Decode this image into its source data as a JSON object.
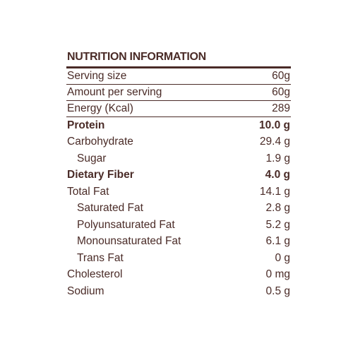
{
  "title": "NUTRITION INFORMATION",
  "table": {
    "rows": [
      [
        "Serving size",
        "60g"
      ],
      [
        "Amount per serving",
        "60g"
      ],
      [
        "Energy (Kcal)",
        "289"
      ],
      [
        "Protein",
        "10.0 g"
      ],
      [
        "Carbohydrate",
        "29.4 g"
      ],
      [
        "Sugar",
        "1.9 g"
      ],
      [
        "Dietary Fiber",
        "4.0 g"
      ],
      [
        "Total Fat",
        "14.1 g"
      ],
      [
        "Saturated Fat",
        "2.8 g"
      ],
      [
        "Polyunsaturated Fat",
        "5.2 g"
      ],
      [
        "Monounsaturated Fat",
        "6.1 g"
      ],
      [
        "Trans Fat",
        "0 g"
      ],
      [
        "Cholesterol",
        "0 mg"
      ],
      [
        "Sodium",
        "0.5 g"
      ]
    ]
  }
}
